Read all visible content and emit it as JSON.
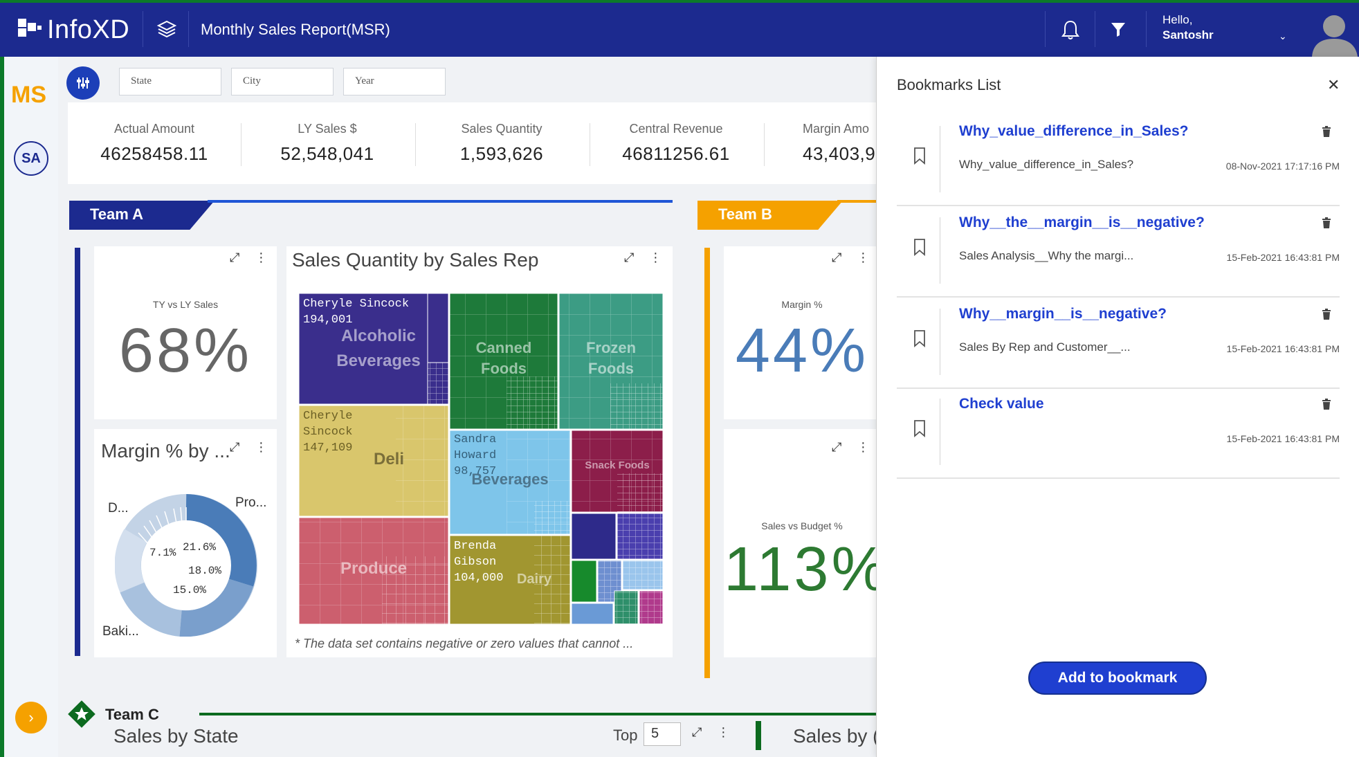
{
  "header": {
    "app_name": "InfoXD",
    "report_title": "Monthly Sales Report(MSR)",
    "greeting": "Hello,",
    "user_name": "Santoshr"
  },
  "rail": {
    "app_abbrev": "MS",
    "user_initials": "SA"
  },
  "filters": [
    {
      "placeholder": "State"
    },
    {
      "placeholder": "City"
    },
    {
      "placeholder": "Year"
    }
  ],
  "kpis": [
    {
      "label": "Actual Amount",
      "value": "46258458.11"
    },
    {
      "label": "LY Sales $",
      "value": "52,548,041"
    },
    {
      "label": "Sales Quantity",
      "value": "1,593,626"
    },
    {
      "label": "Central Revenue",
      "value": "46811256.61"
    },
    {
      "label": "Margin Amo",
      "value": "43,403,9"
    }
  ],
  "team_a": {
    "label": "Team A",
    "tile1_title": "TY vs LY Sales",
    "tile1_value": "68%",
    "donut_title": "Margin % by ...",
    "donut_labels": {
      "d": "D...",
      "pro": "Pro...",
      "baki": "Baki..."
    },
    "donut_values": {
      "a": "7.1%",
      "b": "21.6%",
      "c": "18.0%",
      "d": "15.0%"
    }
  },
  "treemap": {
    "title": "Sales Quantity by Sales Rep",
    "footnote": "* The data set contains negative or zero values that cannot ...",
    "reps": [
      {
        "name1": "Cheryle Sincock",
        "name2": "",
        "value": "194,001"
      },
      {
        "name1": "Cheryle",
        "name2": "Sincock",
        "value": "147,109"
      },
      {
        "name1": "Sandra",
        "name2": "Howard",
        "value": "98,757"
      },
      {
        "name1": "Brenda",
        "name2": "Gibson",
        "value": "104,000"
      }
    ],
    "categories": {
      "alcoholic1": "Alcoholic",
      "alcoholic2": "Beverages",
      "canned1": "Canned",
      "canned2": "Foods",
      "frozen1": "Frozen",
      "frozen2": "Foods",
      "deli": "Deli",
      "beverages": "Beverages",
      "snack": "Snack Foods",
      "produce": "Produce",
      "dairy": "Dairy"
    }
  },
  "team_b": {
    "label": "Team B",
    "tile1_title": "Margin %",
    "tile1_value": "44%",
    "tile2_title": "Sales vs Budget %",
    "tile2_value": "113%"
  },
  "team_c": {
    "label": "Team C",
    "chart_title": "Sales by State",
    "top_label": "Top",
    "top_value": "5",
    "chart2_title": "Sales by ("
  },
  "bookmarks": {
    "title": "Bookmarks List",
    "items": [
      {
        "name": "Why_value_difference_in_Sales?",
        "desc": "Why_value_difference_in_Sales?",
        "date": "08-Nov-2021 17:17:16 PM"
      },
      {
        "name": "Why__the__margin__is__negative?",
        "desc": "Sales Analysis__Why the margi...",
        "date": "15-Feb-2021 16:43:81 PM"
      },
      {
        "name": "Why__margin__is__negative?",
        "desc": "Sales By Rep and Customer__...",
        "date": "15-Feb-2021 16:43:81 PM"
      },
      {
        "name": "Check value",
        "desc": "",
        "date": "15-Feb-2021 16:43:81 PM"
      }
    ],
    "add_label": "Add to bookmark"
  },
  "colors": {
    "header_bg": "#1c2a8f",
    "accent_orange": "#f5a100",
    "link_blue": "#1f3fd0",
    "team_c_green": "#0c6a1f"
  }
}
